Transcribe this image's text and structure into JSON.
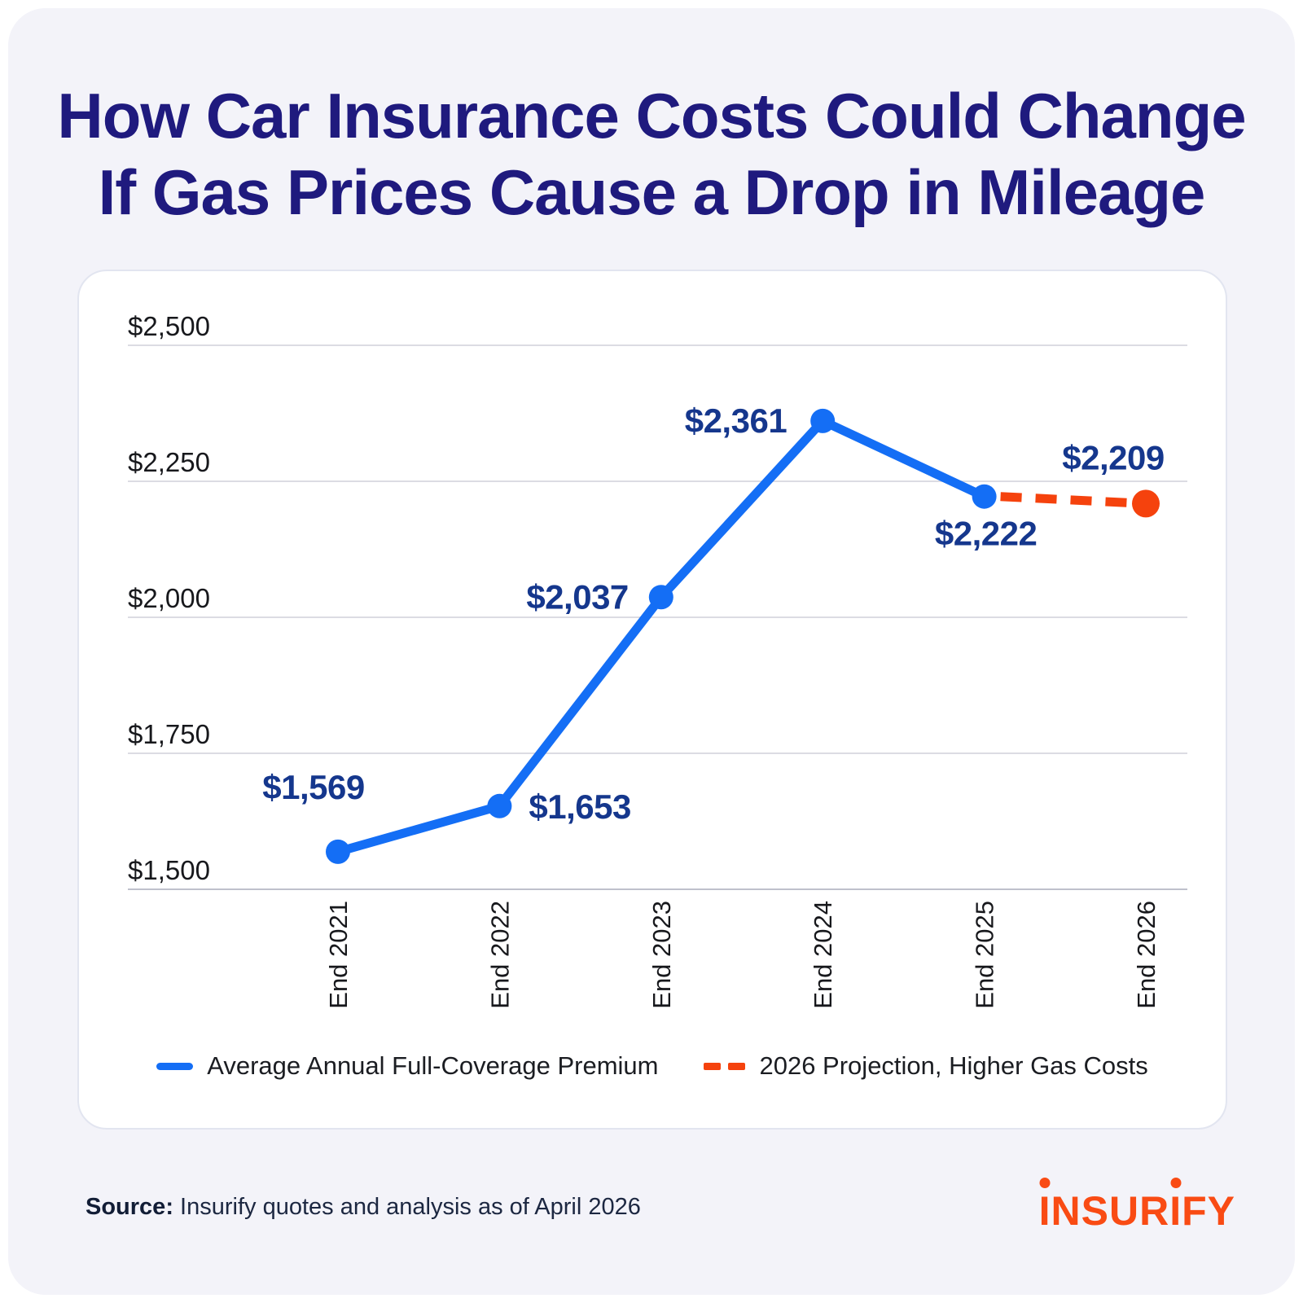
{
  "title": {
    "line1": "How Car Insurance Costs Could Change",
    "line2": "If Gas Prices Cause a Drop in Mileage"
  },
  "chart_data": {
    "type": "line",
    "x": [
      "End 2021",
      "End 2022",
      "End 2023",
      "End 2024",
      "End 2025",
      "End 2026"
    ],
    "series": [
      {
        "name": "Average Annual Full-Coverage Premium",
        "style": "solid",
        "color": "#146EF5",
        "values": [
          1569,
          1653,
          2037,
          2361,
          2222,
          null
        ]
      },
      {
        "name": "2026 Projection, Higher Gas Costs",
        "style": "dashed",
        "color": "#F5420D",
        "values": [
          null,
          null,
          null,
          null,
          2222,
          2209
        ]
      }
    ],
    "point_labels": [
      "$1,569",
      "$1,653",
      "$2,037",
      "$2,361",
      "$2,222",
      "$2,209"
    ],
    "yticks": [
      "$2,500",
      "$2,250",
      "$2,000",
      "$1,750",
      "$1,500"
    ],
    "ytick_values": [
      2500,
      2250,
      2000,
      1750,
      1500
    ],
    "ylim": [
      1500,
      2500
    ],
    "grid": "horizontal",
    "legend_position": "bottom"
  },
  "legend": [
    {
      "label": "Average Annual Full-Coverage Premium",
      "color": "#146EF5",
      "style": "solid"
    },
    {
      "label": "2026 Projection, Higher Gas Costs",
      "color": "#F5420D",
      "style": "dashed"
    }
  ],
  "footer": {
    "source_label": "Source:",
    "source_text": "Insurify quotes and analysis as of April 2026",
    "brand": "insurify"
  },
  "colors": {
    "background": "#F3F3F9",
    "card": "#FFFFFF",
    "title": "#1F1A7E",
    "premium_line": "#146EF5",
    "projection_line": "#F5420D",
    "data_label": "#15378D",
    "brand_orange": "#F94B14"
  }
}
